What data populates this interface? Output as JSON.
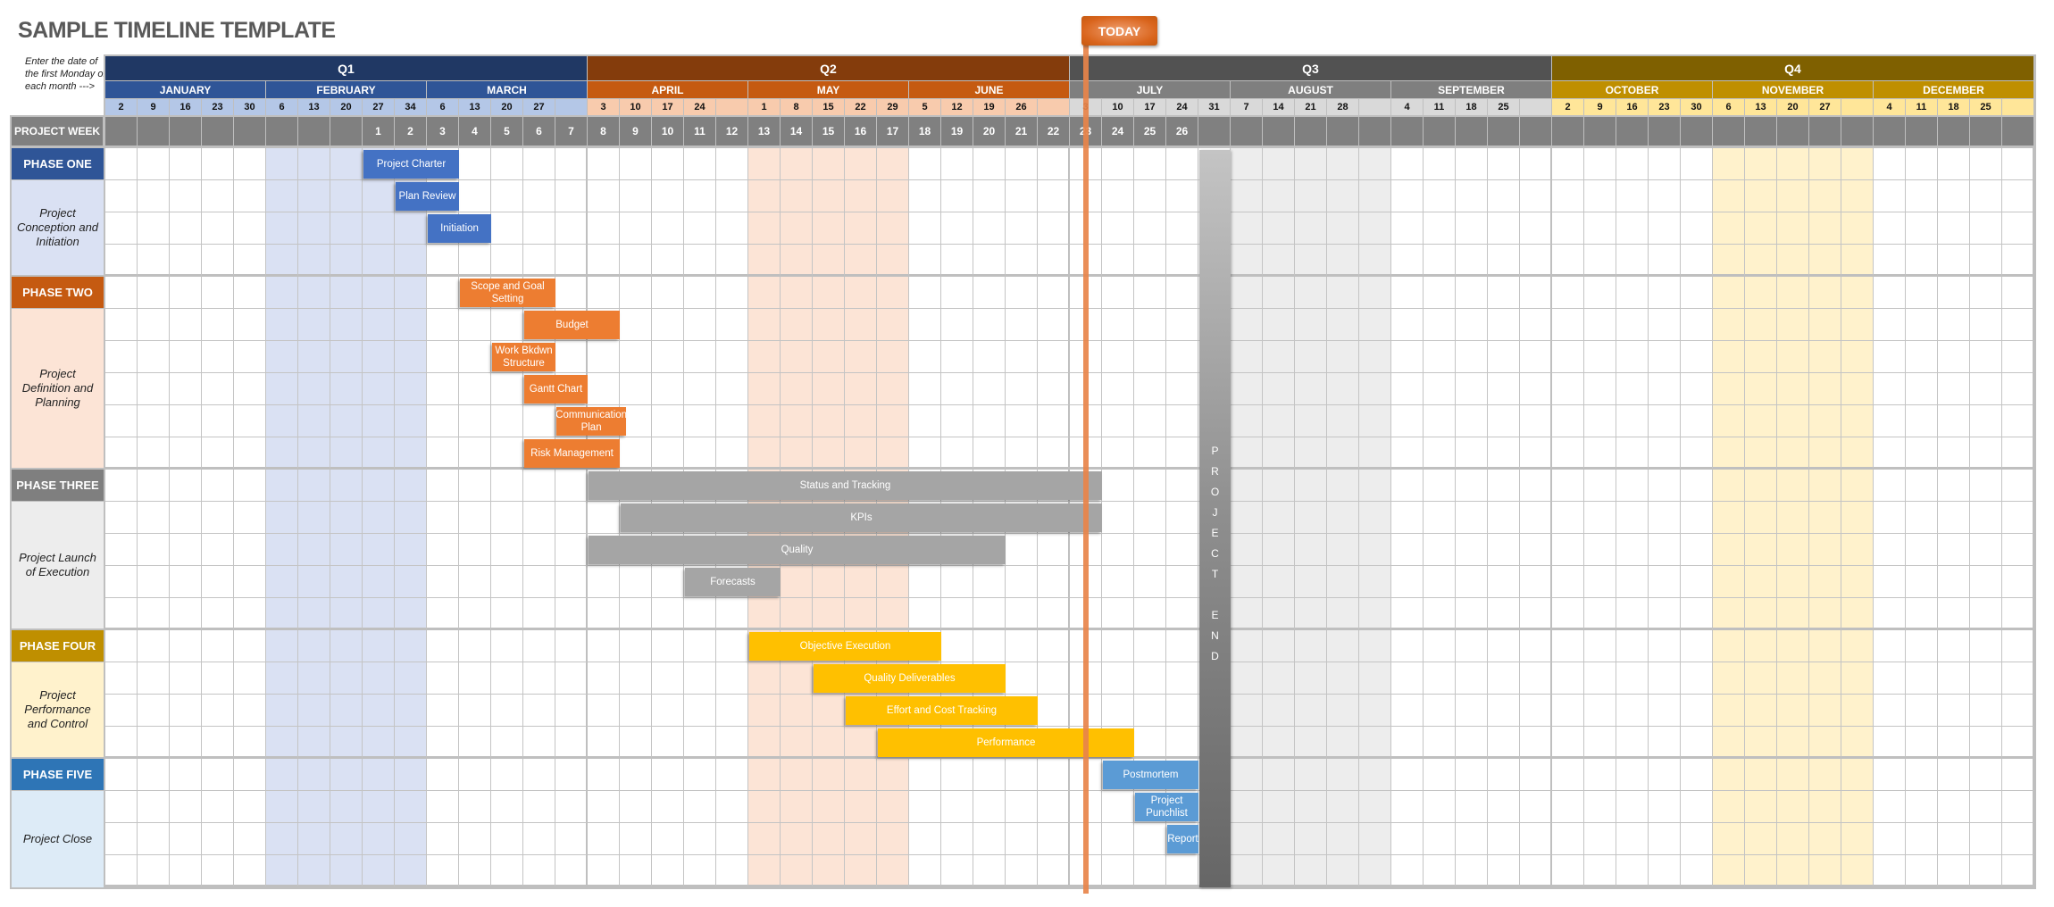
{
  "title": "SAMPLE TIMELINE TEMPLATE",
  "note": "Enter the date of the first Monday of each month --->",
  "today_label": "TODAY",
  "today_project_week": 23.5,
  "project_week_label": "PROJECT WEEK",
  "project_end_label": "PROJECT END",
  "project_end_week": 27,
  "quarters": [
    {
      "label": "Q1",
      "color": "#203864",
      "month_color": "#2F5597",
      "date_color": "#B4C7E7",
      "shade": "#DAE1F3",
      "months": [
        {
          "label": "JANUARY",
          "dates": [
            "2",
            "9",
            "16",
            "23",
            "30"
          ]
        },
        {
          "label": "FEBRUARY",
          "dates": [
            "6",
            "13",
            "20",
            "27",
            "34"
          ],
          "shaded": true
        },
        {
          "label": "MARCH",
          "dates": [
            "6",
            "13",
            "20",
            "27",
            ""
          ]
        }
      ]
    },
    {
      "label": "Q2",
      "color": "#843C0C",
      "month_color": "#C55A11",
      "date_color": "#F8CBAD",
      "shade": "#FCE4D6",
      "months": [
        {
          "label": "APRIL",
          "dates": [
            "3",
            "10",
            "17",
            "24",
            ""
          ]
        },
        {
          "label": "MAY",
          "dates": [
            "1",
            "8",
            "15",
            "22",
            "29"
          ],
          "shaded": true
        },
        {
          "label": "JUNE",
          "dates": [
            "5",
            "12",
            "19",
            "26",
            ""
          ]
        }
      ]
    },
    {
      "label": "Q3",
      "color": "#525252",
      "month_color": "#7F7F7F",
      "date_color": "#D9D9D9",
      "shade": "#EDEDED",
      "months": [
        {
          "label": "JULY",
          "dates": [
            "3",
            "10",
            "17",
            "24",
            "31"
          ]
        },
        {
          "label": "AUGUST",
          "dates": [
            "7",
            "14",
            "21",
            "28",
            ""
          ],
          "shaded": true
        },
        {
          "label": "SEPTEMBER",
          "dates": [
            "4",
            "11",
            "18",
            "25",
            ""
          ]
        }
      ]
    },
    {
      "label": "Q4",
      "color": "#7F6000",
      "month_color": "#BF8F00",
      "date_color": "#FFE699",
      "shade": "#FFF2CC",
      "months": [
        {
          "label": "OCTOBER",
          "dates": [
            "2",
            "9",
            "16",
            "23",
            "30"
          ]
        },
        {
          "label": "NOVEMBER",
          "dates": [
            "6",
            "13",
            "20",
            "27",
            ""
          ],
          "shaded": true
        },
        {
          "label": "DECEMBER",
          "dates": [
            "4",
            "11",
            "18",
            "25",
            ""
          ]
        }
      ]
    }
  ],
  "project_weeks": [
    "",
    "",
    "",
    "",
    "",
    "",
    "",
    "",
    "1",
    "2",
    "3",
    "4",
    "5",
    "6",
    "7",
    "8",
    "9",
    "10",
    "11",
    "12",
    "13",
    "14",
    "15",
    "16",
    "17",
    "18",
    "19",
    "20",
    "21",
    "22",
    "23",
    "24",
    "25",
    "26",
    "",
    "",
    "",
    "",
    "",
    "",
    "",
    "",
    "",
    "",
    "",
    "",
    "",
    "",
    "",
    "",
    "",
    "",
    "",
    "",
    "",
    "",
    "",
    "",
    "",
    ""
  ],
  "phases": [
    {
      "label": "PHASE ONE",
      "description": "Project Conception and Initiation",
      "color": "#2F5597",
      "bg": "#DAE1F3",
      "bar_color": "#4472C4",
      "rows": 4,
      "tasks": [
        {
          "name": "Project Charter",
          "row": 0,
          "start_week": 1,
          "weeks": 3
        },
        {
          "name": "Plan Review",
          "row": 1,
          "start_week": 2,
          "weeks": 2
        },
        {
          "name": "Initiation",
          "row": 2,
          "start_week": 3,
          "weeks": 2
        }
      ]
    },
    {
      "label": "PHASE TWO",
      "description": "Project Definition and Planning",
      "color": "#C55A11",
      "bg": "#FCE4D6",
      "bar_color": "#ED7D31",
      "rows": 6,
      "tasks": [
        {
          "name": "Scope and Goal Setting",
          "row": 0,
          "start_week": 4,
          "weeks": 3
        },
        {
          "name": "Budget",
          "row": 1,
          "start_week": 6,
          "weeks": 3
        },
        {
          "name": "Work Bkdwn Structure",
          "row": 2,
          "start_week": 5,
          "weeks": 2
        },
        {
          "name": "Gantt Chart",
          "row": 3,
          "start_week": 6,
          "weeks": 2
        },
        {
          "name": "Communication Plan",
          "row": 4,
          "start_week": 7,
          "weeks": 2.2
        },
        {
          "name": "Risk Management",
          "row": 5,
          "start_week": 6,
          "weeks": 3
        }
      ]
    },
    {
      "label": "PHASE THREE",
      "description": "Project Launch of Execution",
      "color": "#7F7F7F",
      "bg": "#EDEDED",
      "bar_color": "#A5A5A5",
      "rows": 5,
      "tasks": [
        {
          "name": "Status  and Tracking",
          "row": 0,
          "start_week": 8,
          "weeks": 16
        },
        {
          "name": "KPIs",
          "row": 1,
          "start_week": 9,
          "weeks": 15
        },
        {
          "name": "Quality",
          "row": 2,
          "start_week": 8,
          "weeks": 13
        },
        {
          "name": "Forecasts",
          "row": 3,
          "start_week": 11,
          "weeks": 3
        }
      ]
    },
    {
      "label": "PHASE FOUR",
      "description": "Project Performance and Control",
      "color": "#BF8F00",
      "bg": "#FFF2CC",
      "bar_color": "#FFC000",
      "rows": 4,
      "tasks": [
        {
          "name": "Objective Execution",
          "row": 0,
          "start_week": 13,
          "weeks": 6
        },
        {
          "name": "Quality Deliverables",
          "row": 1,
          "start_week": 15,
          "weeks": 6
        },
        {
          "name": "Effort and Cost Tracking",
          "row": 2,
          "start_week": 16,
          "weeks": 6
        },
        {
          "name": "Performance",
          "row": 3,
          "start_week": 17,
          "weeks": 8
        }
      ]
    },
    {
      "label": "PHASE FIVE",
      "description": "Project Close",
      "color": "#2E75B6",
      "bg": "#DDEBF7",
      "bar_color": "#5B9BD5",
      "rows": 4,
      "tasks": [
        {
          "name": "Postmortem",
          "row": 0,
          "start_week": 24,
          "weeks": 3
        },
        {
          "name": "Project Punchlist",
          "row": 1,
          "start_week": 25,
          "weeks": 2
        },
        {
          "name": "Report",
          "row": 2,
          "start_week": 26,
          "weeks": 1
        }
      ]
    }
  ]
}
